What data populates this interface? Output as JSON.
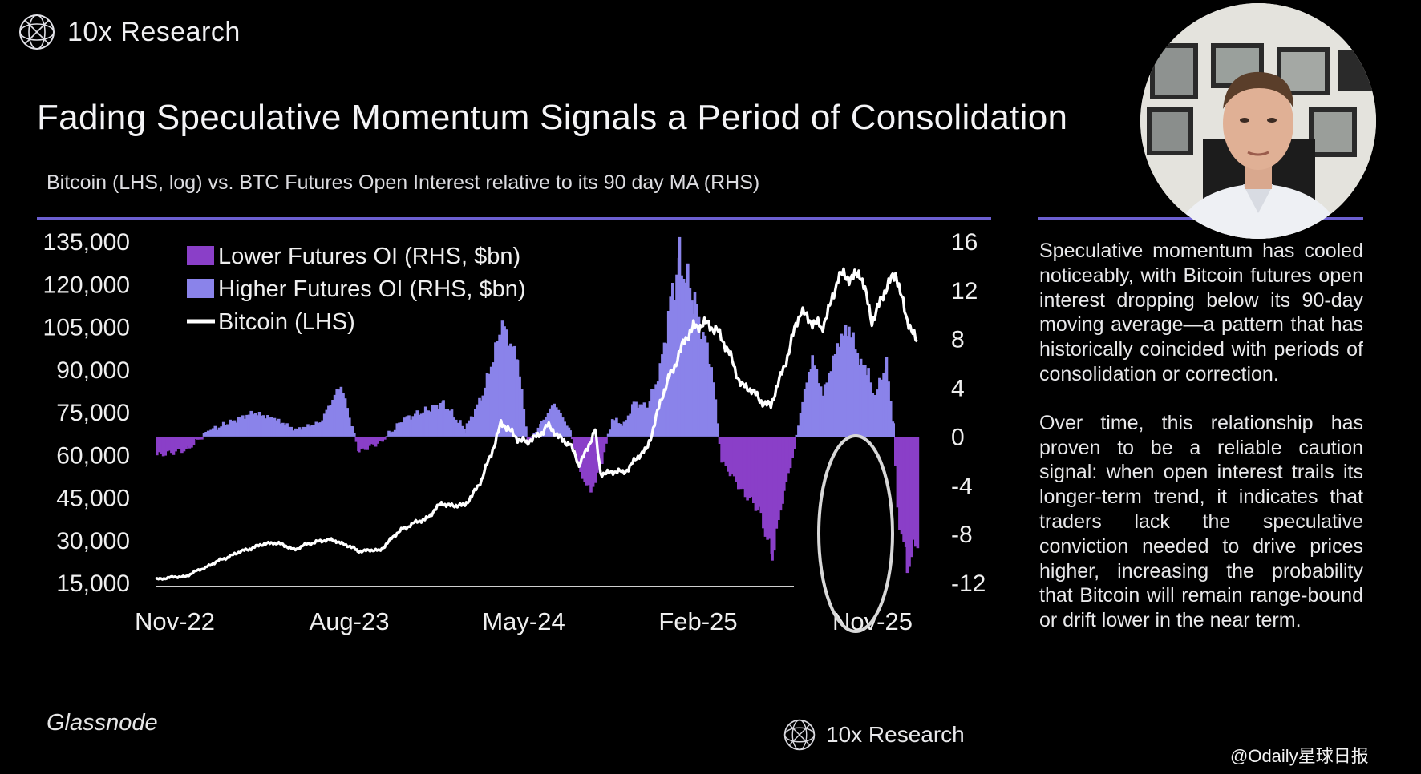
{
  "brand": {
    "name": "10x Research"
  },
  "title": "Fading Speculative Momentum Signals a Period of Consolidation",
  "chart_data": {
    "type": "line+bar",
    "subtitle": "Bitcoin (LHS, log) vs. BTC Futures Open Interest relative to its 90 day MA (RHS)",
    "source": "Glassnode",
    "x_tick_labels": [
      "Nov-22",
      "Aug-23",
      "May-24",
      "Feb-25",
      "Nov-25"
    ],
    "x_range": [
      "2022-11-01",
      "2025-11-01"
    ],
    "y_left": {
      "label": "Bitcoin (LHS, log)",
      "ticks": [
        "135,000",
        "120,000",
        "105,000",
        "90,000",
        "75,000",
        "60,000",
        "45,000",
        "30,000",
        "15,000"
      ],
      "range": [
        15000,
        135000
      ]
    },
    "y_right": {
      "ticks": [
        "16",
        "12",
        "8",
        "4",
        "0",
        "-4",
        "-8",
        "-12"
      ],
      "range": [
        -12,
        16
      ]
    },
    "legend": {
      "position": "top-left",
      "entries": [
        "Lower Futures OI (RHS, $bn)",
        "Higher Futures OI (RHS, $bn)",
        "Bitcoin (LHS)"
      ]
    },
    "colors": {
      "lower": "#8a3fc8",
      "higher": "#8a83ea",
      "bitcoin": "#ffffff",
      "highlight": "#d8d8d8"
    },
    "annotation": "ellipse highlighting recent drop in futures OI (Sep-25 to Nov-25)",
    "series": [
      {
        "name": "Bitcoin (LHS)",
        "kind": "line",
        "points": [
          [
            "2022-11-01",
            16500
          ],
          [
            "2022-12-15",
            17500
          ],
          [
            "2023-01-15",
            21000
          ],
          [
            "2023-02-15",
            24500
          ],
          [
            "2023-03-20",
            27500
          ],
          [
            "2023-04-20",
            29500
          ],
          [
            "2023-05-20",
            27000
          ],
          [
            "2023-06-25",
            30000
          ],
          [
            "2023-07-20",
            30000
          ],
          [
            "2023-08-20",
            26500
          ],
          [
            "2023-09-20",
            26500
          ],
          [
            "2023-10-25",
            34500
          ],
          [
            "2023-11-25",
            37500
          ],
          [
            "2023-12-20",
            43000
          ],
          [
            "2024-01-20",
            42000
          ],
          [
            "2024-02-15",
            51000
          ],
          [
            "2024-03-14",
            71000
          ],
          [
            "2024-04-20",
            64000
          ],
          [
            "2024-05-20",
            70000
          ],
          [
            "2024-06-20",
            64000
          ],
          [
            "2024-07-05",
            57000
          ],
          [
            "2024-07-28",
            68000
          ],
          [
            "2024-08-05",
            54000
          ],
          [
            "2024-09-06",
            54000
          ],
          [
            "2024-10-10",
            62000
          ],
          [
            "2024-11-12",
            88000
          ],
          [
            "2024-12-17",
            106000
          ],
          [
            "2025-01-20",
            105000
          ],
          [
            "2025-02-25",
            85000
          ],
          [
            "2025-04-08",
            77000
          ],
          [
            "2025-05-22",
            111000
          ],
          [
            "2025-06-20",
            104000
          ],
          [
            "2025-07-14",
            122000
          ],
          [
            "2025-08-14",
            124000
          ],
          [
            "2025-09-01",
            108000
          ],
          [
            "2025-10-06",
            125000
          ],
          [
            "2025-10-20",
            108000
          ],
          [
            "2025-11-05",
            100000
          ]
        ]
      },
      {
        "name": "Futures OI relative to 90 day MA (RHS, $bn)",
        "kind": "bar",
        "points": [
          [
            "2022-11-01",
            -1.5
          ],
          [
            "2022-12-15",
            -1.0
          ],
          [
            "2023-01-15",
            0.5
          ],
          [
            "2023-02-15",
            1.2
          ],
          [
            "2023-03-20",
            2.0
          ],
          [
            "2023-04-20",
            1.5
          ],
          [
            "2023-05-20",
            0.6
          ],
          [
            "2023-06-25",
            1.2
          ],
          [
            "2023-07-10",
            2.8
          ],
          [
            "2023-07-25",
            4.3
          ],
          [
            "2023-08-10",
            0.8
          ],
          [
            "2023-08-20",
            -1.2
          ],
          [
            "2023-09-20",
            -0.4
          ],
          [
            "2023-10-25",
            1.5
          ],
          [
            "2023-11-25",
            2.2
          ],
          [
            "2023-12-20",
            2.8
          ],
          [
            "2024-01-20",
            0.6
          ],
          [
            "2024-02-15",
            3.5
          ],
          [
            "2024-03-14",
            9.2
          ],
          [
            "2024-04-05",
            6.5
          ],
          [
            "2024-04-20",
            -0.5
          ],
          [
            "2024-05-10",
            1.2
          ],
          [
            "2024-05-28",
            2.8
          ],
          [
            "2024-06-20",
            0.5
          ],
          [
            "2024-07-05",
            -3.0
          ],
          [
            "2024-07-20",
            -4.5
          ],
          [
            "2024-08-05",
            -2.0
          ],
          [
            "2024-08-20",
            1.5
          ],
          [
            "2024-09-06",
            1.0
          ],
          [
            "2024-09-20",
            2.8
          ],
          [
            "2024-10-10",
            2.5
          ],
          [
            "2024-10-28",
            5.5
          ],
          [
            "2024-11-12",
            11.0
          ],
          [
            "2024-11-25",
            14.7
          ],
          [
            "2024-12-17",
            11.0
          ],
          [
            "2025-01-10",
            6.0
          ],
          [
            "2025-01-25",
            -2.0
          ],
          [
            "2025-02-25",
            -4.5
          ],
          [
            "2025-03-20",
            -6.0
          ],
          [
            "2025-04-08",
            -9.8
          ],
          [
            "2025-04-25",
            -4.5
          ],
          [
            "2025-05-10",
            -1.0
          ],
          [
            "2025-05-22",
            3.0
          ],
          [
            "2025-06-05",
            6.5
          ],
          [
            "2025-06-20",
            3.5
          ],
          [
            "2025-07-14",
            8.0
          ],
          [
            "2025-07-28",
            9.0
          ],
          [
            "2025-08-14",
            6.0
          ],
          [
            "2025-08-25",
            5.5
          ],
          [
            "2025-09-01",
            3.0
          ],
          [
            "2025-09-20",
            6.0
          ],
          [
            "2025-09-30",
            1.0
          ],
          [
            "2025-10-06",
            -6.0
          ],
          [
            "2025-10-20",
            -10.5
          ],
          [
            "2025-11-05",
            -8.5
          ]
        ]
      }
    ]
  },
  "commentary": [
    "Speculative momentum has cooled noticeably, with Bitcoin futures open interest dropping below its 90-day moving average—a pattern that has historically coincided with periods of consolidation or correction.",
    "Over time, this relationship has proven to be a reliable caution signal: when open interest trails its longer-term trend, it indicates that traders lack the speculative conviction needed to drive prices higher, increasing the probability that Bitcoin will remain range-bound or drift lower in the near term."
  ],
  "watermark": "@Odaily星球日报"
}
